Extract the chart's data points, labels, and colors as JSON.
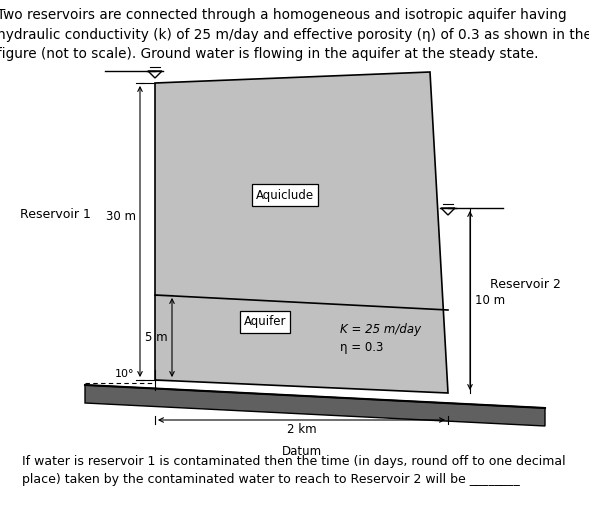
{
  "title_text": "Two reservoirs are connected through a homogeneous and isotropic aquifer having\nhydraulic conductivity (k) of 25 m/day and effective porosity (η) of 0.3 as shown in the\nfigure (not to scale). Ground water is flowing in the aquifer at the steady state.",
  "bottom_text": "If water is reservoir 1 is contaminated then the time (in days, round off to one decimal\nplace) taken by the contaminated water to reach to Reservoir 2 will be ________",
  "bg_color": "#ffffff",
  "box_color": "#c0c0c0",
  "ground_color": "#606060",
  "title_fontsize": 9.8,
  "label_fontsize": 9.0,
  "annot_fontsize": 8.5,
  "small_fontsize": 8.0,
  "label_res1": "Reservoir 1",
  "label_res2": "Reservoir 2",
  "label_aquiclude": "Aquiclude",
  "label_aquifer": "Aquifer",
  "label_k": "K = 25 m/day",
  "label_n": "η = 0.3",
  "label_30m": "30 m",
  "label_5m": "5 m",
  "label_10m": "10 m",
  "label_2km": "2 km",
  "label_datum": "Datum",
  "label_10deg": "10°"
}
